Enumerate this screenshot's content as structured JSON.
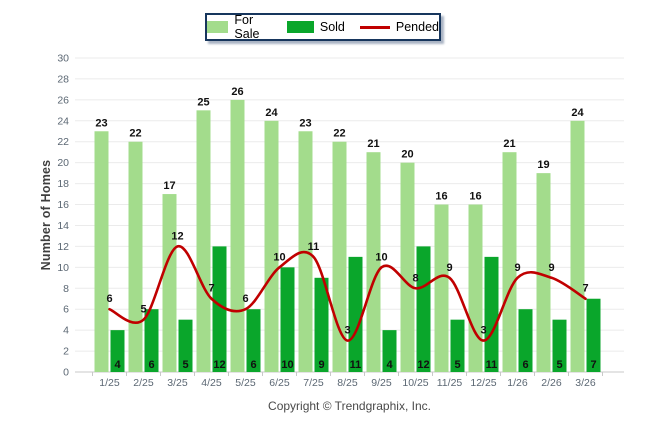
{
  "legend": {
    "items": [
      {
        "label": "For Sale",
        "color": "#A3DC8C",
        "swatch": "box"
      },
      {
        "label": "Sold",
        "color": "#0AA62B",
        "swatch": "box"
      },
      {
        "label": "Pended",
        "color": "#C00000",
        "swatch": "line"
      }
    ]
  },
  "footer": {
    "copyright": "Copyright © Trendgraphix, Inc."
  },
  "chart_data": {
    "type": "bar",
    "title": "",
    "xlabel": "",
    "ylabel": "Number of Homes",
    "ylim": [
      0,
      30
    ],
    "ytick_step": 2,
    "grid": true,
    "legend_position": "top",
    "categories": [
      "1/25",
      "2/25",
      "3/25",
      "4/25",
      "5/25",
      "6/25",
      "7/25",
      "8/25",
      "9/25",
      "10/25",
      "11/25",
      "12/25",
      "1/26",
      "2/26",
      "3/26"
    ],
    "series": [
      {
        "name": "For Sale",
        "type": "bar",
        "color": "#A3DC8C",
        "values": [
          23,
          22,
          17,
          25,
          26,
          24,
          23,
          22,
          21,
          20,
          16,
          16,
          21,
          19,
          24
        ]
      },
      {
        "name": "Sold",
        "type": "bar",
        "color": "#0AA62B",
        "values": [
          4,
          6,
          5,
          12,
          6,
          10,
          9,
          11,
          4,
          12,
          5,
          11,
          6,
          5,
          7
        ]
      },
      {
        "name": "Pended",
        "type": "line",
        "color": "#C00000",
        "values": [
          6,
          5,
          12,
          7,
          6,
          10,
          11,
          3,
          10,
          8,
          9,
          3,
          9,
          9,
          7
        ]
      }
    ],
    "colors": {
      "grid": "#ebebeb",
      "axis": "#c9c9c9",
      "tick_label": "#5b6773",
      "data_label": "#111111"
    }
  }
}
